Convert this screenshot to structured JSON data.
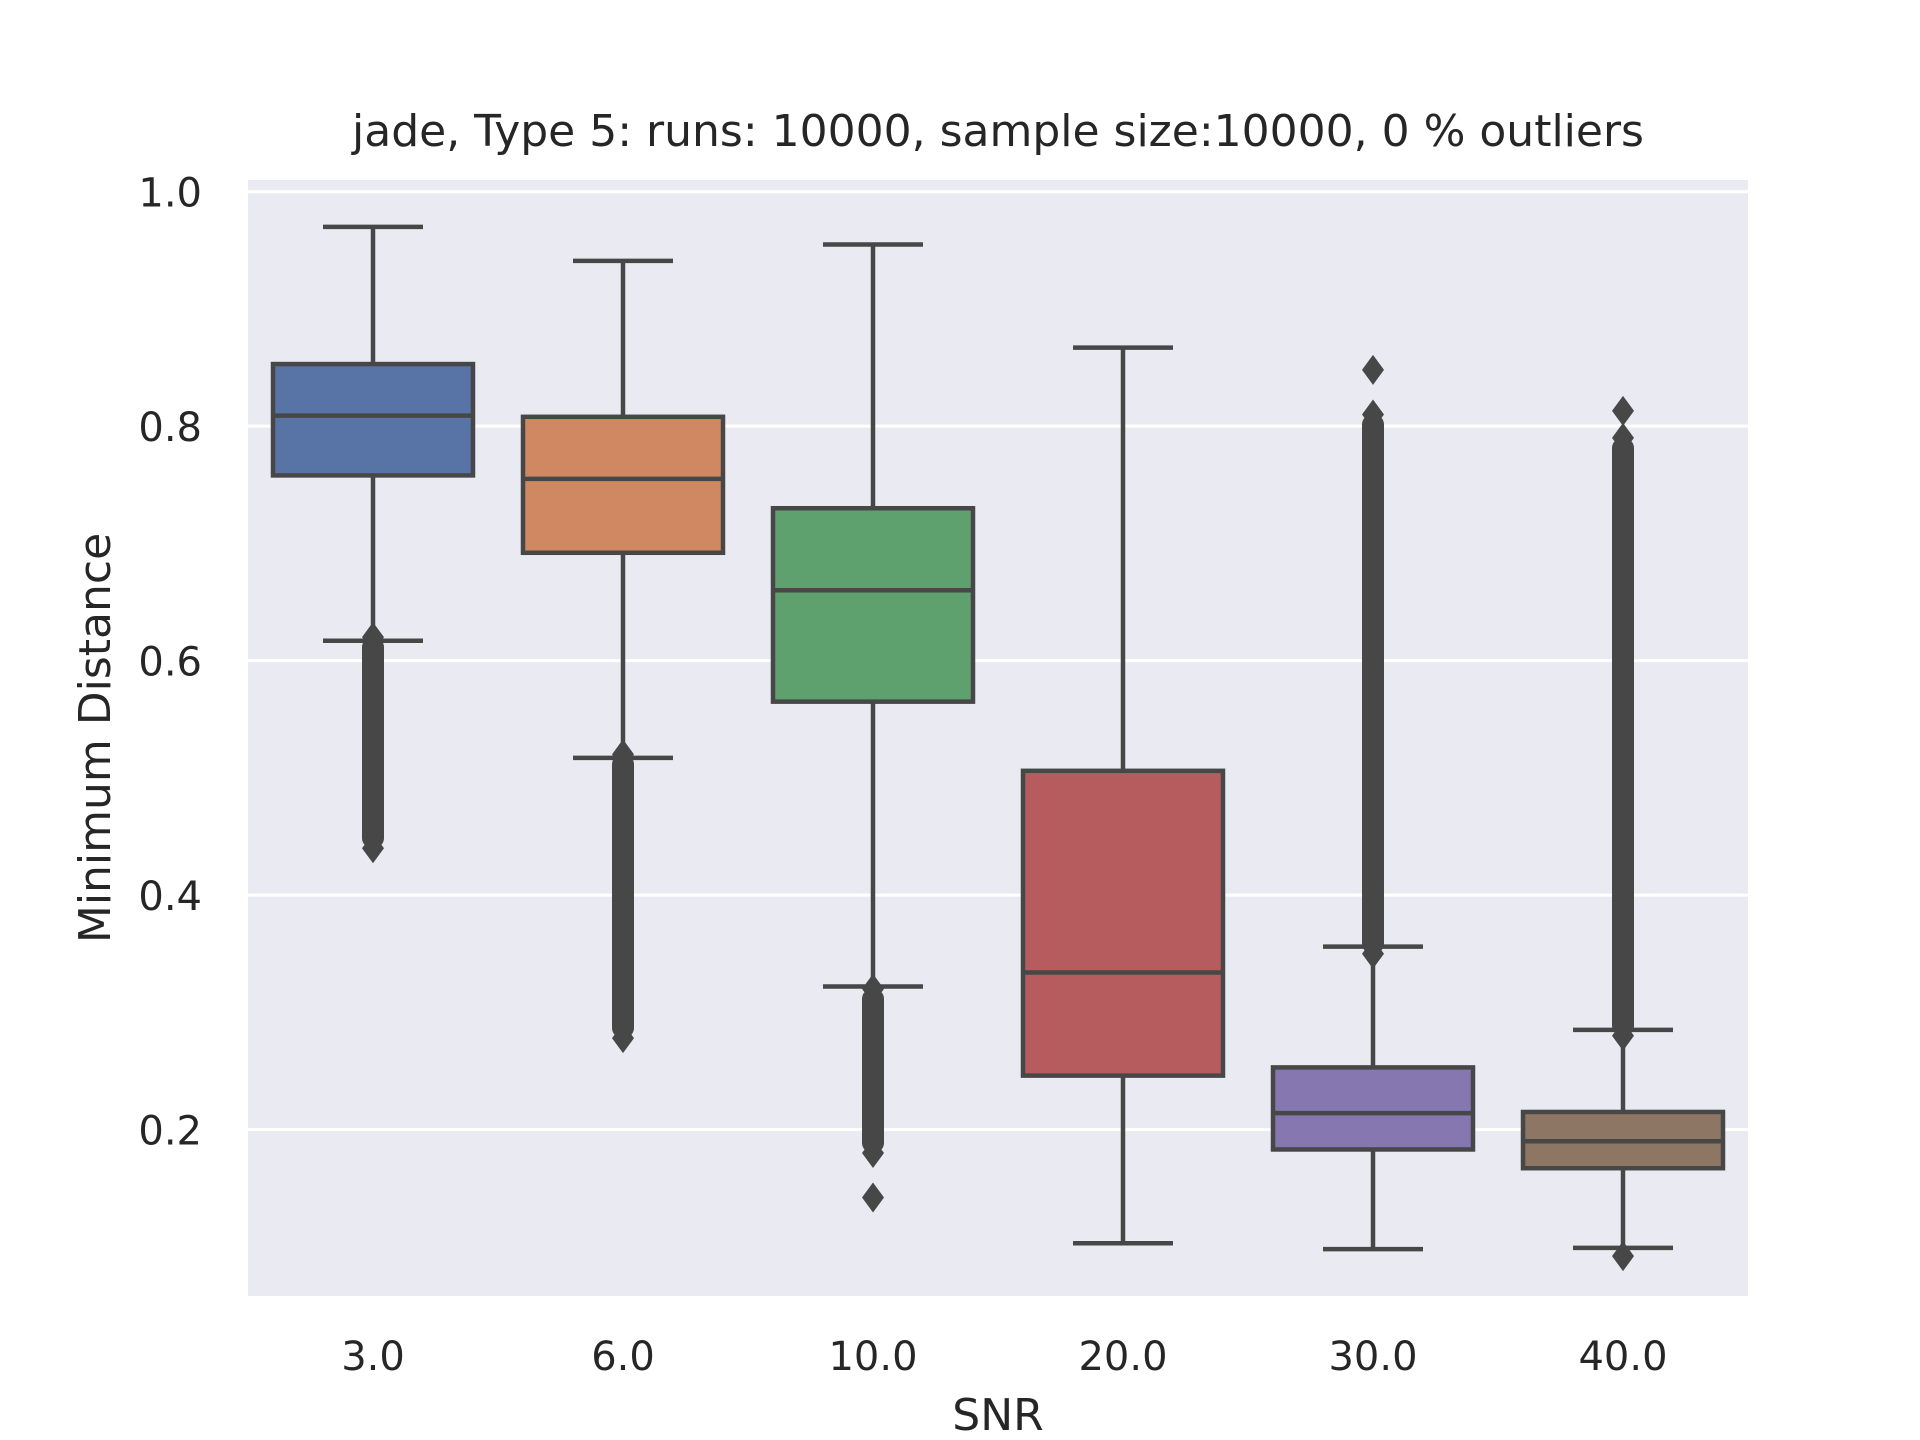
{
  "chart_data": {
    "type": "box",
    "title": "jade,  Type 5:  runs: 10000, sample size:10000, 0 % outliers",
    "xlabel": "SNR",
    "ylabel": "Minimum Distance",
    "ylim": [
      0.058,
      1.01
    ],
    "yticks": [
      "0.2",
      "0.4",
      "0.6",
      "0.8",
      "1.0"
    ],
    "grid": true,
    "categories": [
      "3.0",
      "6.0",
      "10.0",
      "20.0",
      "30.0",
      "40.0"
    ],
    "boxes": [
      {
        "category": "3.0",
        "color": "#5874a6",
        "whisker_low": 0.617,
        "q1": 0.758,
        "median": 0.809,
        "q3": 0.853,
        "whisker_high": 0.97,
        "fliers_low": [
          0.44,
          0.62
        ],
        "fliers_high": null
      },
      {
        "category": "6.0",
        "color": "#cf8862",
        "whisker_low": 0.517,
        "q1": 0.692,
        "median": 0.755,
        "q3": 0.808,
        "whisker_high": 0.941,
        "fliers_low": [
          0.278,
          0.52
        ],
        "fliers_high": null
      },
      {
        "category": "10.0",
        "color": "#5fa06f",
        "whisker_low": 0.322,
        "q1": 0.565,
        "median": 0.66,
        "q3": 0.73,
        "whisker_high": 0.955,
        "fliers_low": [
          0.18,
          0.32
        ],
        "fliers_high": null,
        "extra_fliers": [
          0.142
        ]
      },
      {
        "category": "20.0",
        "color": "#b65c5f",
        "whisker_low": 0.103,
        "q1": 0.246,
        "median": 0.334,
        "q3": 0.506,
        "whisker_high": 0.867,
        "fliers_low": null,
        "fliers_high": null
      },
      {
        "category": "30.0",
        "color": "#8677b0",
        "whisker_low": 0.098,
        "q1": 0.183,
        "median": 0.214,
        "q3": 0.253,
        "whisker_high": 0.356,
        "fliers_low": null,
        "fliers_high": [
          0.35,
          0.81
        ],
        "extra_fliers": [
          0.848
        ]
      },
      {
        "category": "40.0",
        "color": "#8d7664",
        "whisker_low": 0.099,
        "q1": 0.167,
        "median": 0.19,
        "q3": 0.215,
        "whisker_high": 0.285,
        "fliers_low": null,
        "fliers_high": [
          0.28,
          0.79
        ],
        "extra_fliers": [
          0.813,
          0.092
        ]
      }
    ]
  }
}
